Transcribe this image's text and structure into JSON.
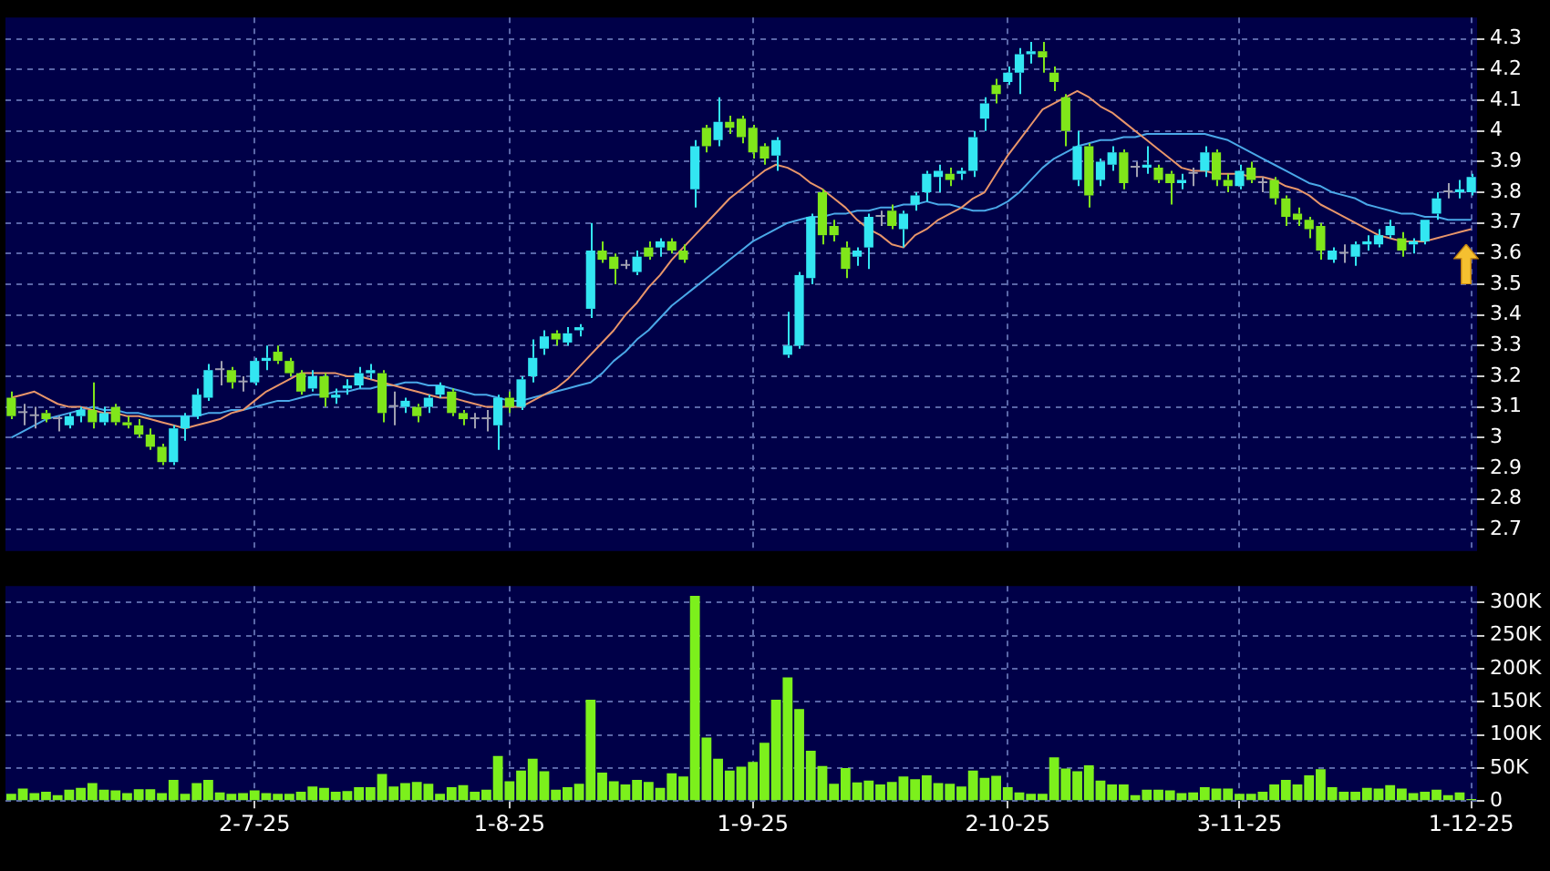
{
  "chart_data": [
    {
      "type": "candlestick",
      "tick_labels": "y",
      "grid": true,
      "marker": "none",
      "categories": [
        null,
        null,
        null,
        null,
        null,
        null,
        null,
        null,
        null,
        null,
        null,
        null,
        null,
        null,
        null,
        null,
        null,
        null,
        null,
        null,
        null,
        null,
        null,
        null,
        null,
        null,
        null,
        null,
        null,
        null,
        null,
        null,
        null,
        null,
        null,
        null,
        null,
        null,
        null,
        null,
        null,
        null,
        null,
        null,
        null,
        null,
        null,
        null,
        null,
        null,
        null,
        null,
        null,
        null,
        null,
        null,
        null,
        null,
        null,
        null,
        null,
        null,
        null,
        null,
        null,
        null,
        null,
        null,
        null,
        null,
        null,
        null,
        null,
        null,
        null,
        null,
        null,
        null,
        null,
        null,
        null,
        null,
        null,
        null,
        null,
        null,
        null,
        null,
        null,
        null,
        null,
        null,
        null,
        null,
        null,
        null,
        null,
        null,
        null,
        null,
        null,
        null,
        null,
        null,
        null,
        null,
        null,
        null,
        null,
        null,
        null,
        null,
        null,
        null,
        null,
        null,
        null,
        null,
        null,
        null,
        null,
        null,
        null,
        null,
        null,
        null,
        null
      ],
      "ohlc": [
        [
          3.13,
          3.15,
          3.06,
          3.07
        ],
        [
          3.08,
          3.11,
          3.04,
          3.08
        ],
        [
          3.07,
          3.1,
          3.03,
          3.07
        ],
        [
          3.08,
          3.09,
          3.05,
          3.06
        ],
        [
          3.06,
          3.07,
          3.02,
          3.06
        ],
        [
          3.04,
          3.08,
          3.03,
          3.07
        ],
        [
          3.07,
          3.1,
          3.05,
          3.09
        ],
        [
          3.09,
          3.18,
          3.03,
          3.05
        ],
        [
          3.05,
          3.1,
          3.04,
          3.08
        ],
        [
          3.1,
          3.11,
          3.04,
          3.05
        ],
        [
          3.05,
          3.07,
          3.03,
          3.04
        ],
        [
          3.04,
          3.06,
          3.0,
          3.01
        ],
        [
          3.01,
          3.03,
          2.96,
          2.97
        ],
        [
          2.97,
          2.98,
          2.91,
          2.92
        ],
        [
          2.92,
          3.04,
          2.91,
          3.03
        ],
        [
          3.03,
          3.08,
          2.99,
          3.07
        ],
        [
          3.07,
          3.16,
          3.06,
          3.14
        ],
        [
          3.13,
          3.24,
          3.12,
          3.22
        ],
        [
          3.22,
          3.25,
          3.17,
          3.22
        ],
        [
          3.22,
          3.23,
          3.16,
          3.18
        ],
        [
          3.18,
          3.2,
          3.15,
          3.18
        ],
        [
          3.18,
          3.26,
          3.17,
          3.25
        ],
        [
          3.25,
          3.3,
          3.22,
          3.26
        ],
        [
          3.28,
          3.3,
          3.24,
          3.25
        ],
        [
          3.25,
          3.26,
          3.2,
          3.21
        ],
        [
          3.21,
          3.22,
          3.14,
          3.15
        ],
        [
          3.16,
          3.22,
          3.15,
          3.2
        ],
        [
          3.2,
          3.21,
          3.1,
          3.13
        ],
        [
          3.13,
          3.16,
          3.11,
          3.14
        ],
        [
          3.16,
          3.19,
          3.14,
          3.17
        ],
        [
          3.17,
          3.23,
          3.16,
          3.21
        ],
        [
          3.21,
          3.24,
          3.19,
          3.22
        ],
        [
          3.21,
          3.22,
          3.05,
          3.08
        ],
        [
          3.1,
          3.15,
          3.04,
          3.1
        ],
        [
          3.1,
          3.13,
          3.08,
          3.12
        ],
        [
          3.1,
          3.11,
          3.05,
          3.07
        ],
        [
          3.1,
          3.14,
          3.08,
          3.13
        ],
        [
          3.14,
          3.18,
          3.13,
          3.17
        ],
        [
          3.15,
          3.16,
          3.07,
          3.08
        ],
        [
          3.08,
          3.09,
          3.04,
          3.06
        ],
        [
          3.06,
          3.08,
          3.03,
          3.06
        ],
        [
          3.06,
          3.09,
          3.02,
          3.06
        ],
        [
          3.04,
          3.14,
          2.96,
          3.13
        ],
        [
          3.13,
          3.15,
          3.08,
          3.1
        ],
        [
          3.1,
          3.2,
          3.09,
          3.19
        ],
        [
          3.2,
          3.32,
          3.18,
          3.26
        ],
        [
          3.29,
          3.35,
          3.27,
          3.33
        ],
        [
          3.34,
          3.35,
          3.3,
          3.32
        ],
        [
          3.31,
          3.36,
          3.3,
          3.34
        ],
        [
          3.35,
          3.37,
          3.33,
          3.36
        ],
        [
          3.42,
          3.7,
          3.39,
          3.61
        ],
        [
          3.61,
          3.64,
          3.57,
          3.58
        ],
        [
          3.59,
          3.6,
          3.5,
          3.55
        ],
        [
          3.56,
          3.58,
          3.55,
          3.56
        ],
        [
          3.54,
          3.61,
          3.53,
          3.59
        ],
        [
          3.62,
          3.64,
          3.58,
          3.59
        ],
        [
          3.62,
          3.65,
          3.59,
          3.64
        ],
        [
          3.64,
          3.65,
          3.6,
          3.61
        ],
        [
          3.61,
          3.63,
          3.57,
          3.58
        ],
        [
          3.81,
          3.97,
          3.75,
          3.95
        ],
        [
          4.01,
          4.02,
          3.93,
          3.95
        ],
        [
          3.97,
          4.11,
          3.95,
          4.03
        ],
        [
          4.03,
          4.05,
          3.99,
          4.01
        ],
        [
          4.04,
          4.05,
          3.96,
          3.98
        ],
        [
          4.01,
          4.02,
          3.91,
          3.93
        ],
        [
          3.95,
          3.96,
          3.89,
          3.91
        ],
        [
          3.92,
          3.98,
          3.87,
          3.97
        ],
        [
          3.27,
          3.41,
          3.26,
          3.3
        ],
        [
          3.3,
          3.54,
          3.29,
          3.53
        ],
        [
          3.52,
          3.73,
          3.5,
          3.72
        ],
        [
          3.8,
          3.81,
          3.63,
          3.66
        ],
        [
          3.69,
          3.71,
          3.64,
          3.66
        ],
        [
          3.62,
          3.64,
          3.52,
          3.55
        ],
        [
          3.59,
          3.62,
          3.56,
          3.61
        ],
        [
          3.62,
          3.73,
          3.55,
          3.72
        ],
        [
          3.72,
          3.74,
          3.69,
          3.72
        ],
        [
          3.74,
          3.76,
          3.68,
          3.69
        ],
        [
          3.68,
          3.74,
          3.62,
          3.73
        ],
        [
          3.76,
          3.8,
          3.74,
          3.79
        ],
        [
          3.8,
          3.87,
          3.77,
          3.86
        ],
        [
          3.85,
          3.89,
          3.8,
          3.87
        ],
        [
          3.86,
          3.88,
          3.82,
          3.84
        ],
        [
          3.86,
          3.88,
          3.84,
          3.87
        ],
        [
          3.87,
          4.0,
          3.85,
          3.98
        ],
        [
          4.04,
          4.11,
          4.0,
          4.09
        ],
        [
          4.15,
          4.17,
          4.09,
          4.12
        ],
        [
          4.16,
          4.21,
          4.15,
          4.19
        ],
        [
          4.19,
          4.27,
          4.12,
          4.25
        ],
        [
          4.25,
          4.29,
          4.22,
          4.26
        ],
        [
          4.26,
          4.29,
          4.19,
          4.24
        ],
        [
          4.19,
          4.21,
          4.13,
          4.16
        ],
        [
          4.11,
          4.12,
          3.95,
          4.0
        ],
        [
          3.84,
          4.0,
          3.82,
          3.95
        ],
        [
          3.95,
          3.96,
          3.75,
          3.79
        ],
        [
          3.84,
          3.91,
          3.82,
          3.9
        ],
        [
          3.89,
          3.95,
          3.87,
          3.93
        ],
        [
          3.93,
          3.94,
          3.81,
          3.83
        ],
        [
          3.88,
          3.9,
          3.85,
          3.88
        ],
        [
          3.88,
          3.95,
          3.86,
          3.89
        ],
        [
          3.88,
          3.89,
          3.83,
          3.84
        ],
        [
          3.86,
          3.87,
          3.76,
          3.83
        ],
        [
          3.83,
          3.86,
          3.81,
          3.84
        ],
        [
          3.86,
          3.88,
          3.82,
          3.86
        ],
        [
          3.87,
          3.95,
          3.85,
          3.93
        ],
        [
          3.93,
          3.94,
          3.82,
          3.84
        ],
        [
          3.84,
          3.86,
          3.8,
          3.82
        ],
        [
          3.82,
          3.89,
          3.81,
          3.87
        ],
        [
          3.88,
          3.9,
          3.83,
          3.84
        ],
        [
          3.83,
          3.85,
          3.8,
          3.83
        ],
        [
          3.84,
          3.85,
          3.76,
          3.78
        ],
        [
          3.78,
          3.79,
          3.69,
          3.72
        ],
        [
          3.73,
          3.75,
          3.69,
          3.71
        ],
        [
          3.71,
          3.72,
          3.65,
          3.68
        ],
        [
          3.69,
          3.7,
          3.58,
          3.61
        ],
        [
          3.58,
          3.62,
          3.57,
          3.61
        ],
        [
          3.6,
          3.63,
          3.57,
          3.6
        ],
        [
          3.59,
          3.64,
          3.56,
          3.63
        ],
        [
          3.63,
          3.66,
          3.61,
          3.64
        ],
        [
          3.63,
          3.68,
          3.62,
          3.66
        ],
        [
          3.66,
          3.71,
          3.65,
          3.69
        ],
        [
          3.65,
          3.67,
          3.59,
          3.61
        ],
        [
          3.63,
          3.65,
          3.6,
          3.64
        ],
        [
          3.64,
          3.71,
          3.63,
          3.71
        ],
        [
          3.73,
          3.8,
          3.71,
          3.78
        ],
        [
          3.8,
          3.83,
          3.78,
          3.8
        ],
        [
          3.8,
          3.84,
          3.78,
          3.81
        ],
        [
          3.8,
          3.86,
          3.79,
          3.85
        ]
      ],
      "colors": [
        "#80e61a",
        "#a0a0b0",
        "#a0a0b0",
        "#80e61a",
        "#a0a0b0",
        "#33e6f2",
        "#33e6f2",
        "#80e61a",
        "#33e6f2",
        "#80e61a",
        "#80e61a",
        "#80e61a",
        "#80e61a",
        "#80e61a",
        "#33e6f2",
        "#33e6f2",
        "#33e6f2",
        "#33e6f2",
        "#a0a0b0",
        "#80e61a",
        "#a0a0b0",
        "#33e6f2",
        "#33e6f2",
        "#80e61a",
        "#80e61a",
        "#80e61a",
        "#33e6f2",
        "#80e61a",
        "#33e6f2",
        "#33e6f2",
        "#33e6f2",
        "#33e6f2",
        "#80e61a",
        "#a0a0b0",
        "#33e6f2",
        "#80e61a",
        "#33e6f2",
        "#33e6f2",
        "#80e61a",
        "#80e61a",
        "#a0a0b0",
        "#a0a0b0",
        "#33e6f2",
        "#80e61a",
        "#33e6f2",
        "#33e6f2",
        "#33e6f2",
        "#80e61a",
        "#33e6f2",
        "#33e6f2",
        "#33e6f2",
        "#80e61a",
        "#80e61a",
        "#a0a0b0",
        "#33e6f2",
        "#80e61a",
        "#33e6f2",
        "#80e61a",
        "#80e61a",
        "#33e6f2",
        "#80e61a",
        "#33e6f2",
        "#80e61a",
        "#80e61a",
        "#80e61a",
        "#80e61a",
        "#33e6f2",
        "#33e6f2",
        "#33e6f2",
        "#33e6f2",
        "#80e61a",
        "#80e61a",
        "#80e61a",
        "#33e6f2",
        "#33e6f2",
        "#a0a0b0",
        "#80e61a",
        "#33e6f2",
        "#33e6f2",
        "#33e6f2",
        "#33e6f2",
        "#80e61a",
        "#33e6f2",
        "#33e6f2",
        "#33e6f2",
        "#80e61a",
        "#33e6f2",
        "#33e6f2",
        "#33e6f2",
        "#80e61a",
        "#80e61a",
        "#80e61a",
        "#33e6f2",
        "#80e61a",
        "#33e6f2",
        "#33e6f2",
        "#80e61a",
        "#a0a0b0",
        "#33e6f2",
        "#80e61a",
        "#80e61a",
        "#33e6f2",
        "#a0a0b0",
        "#33e6f2",
        "#80e61a",
        "#80e61a",
        "#33e6f2",
        "#80e61a",
        "#a0a0b0",
        "#80e61a",
        "#80e61a",
        "#80e61a",
        "#80e61a",
        "#80e61a",
        "#33e6f2",
        "#a0a0b0",
        "#33e6f2",
        "#33e6f2",
        "#33e6f2",
        "#33e6f2",
        "#80e61a",
        "#33e6f2",
        "#33e6f2",
        "#33e6f2",
        "#a0a0b0",
        "#33e6f2",
        "#33e6f2"
      ],
      "series": [
        {
          "type": "line",
          "color": "#e8956a",
          "values": [
            3.13,
            3.14,
            3.15,
            3.13,
            3.11,
            3.1,
            3.1,
            3.09,
            3.08,
            3.08,
            3.07,
            3.07,
            3.06,
            3.05,
            3.04,
            3.03,
            3.04,
            3.05,
            3.06,
            3.08,
            3.09,
            3.12,
            3.15,
            3.17,
            3.19,
            3.21,
            3.21,
            3.21,
            3.21,
            3.2,
            3.2,
            3.19,
            3.18,
            3.17,
            3.16,
            3.15,
            3.14,
            3.13,
            3.13,
            3.12,
            3.11,
            3.1,
            3.1,
            3.1,
            3.1,
            3.12,
            3.14,
            3.16,
            3.19,
            3.23,
            3.27,
            3.31,
            3.35,
            3.4,
            3.44,
            3.49,
            3.53,
            3.58,
            3.62,
            3.66,
            3.7,
            3.74,
            3.78,
            3.81,
            3.84,
            3.87,
            3.89,
            3.88,
            3.86,
            3.83,
            3.81,
            3.78,
            3.75,
            3.71,
            3.68,
            3.66,
            3.63,
            3.62,
            3.66,
            3.68,
            3.71,
            3.73,
            3.75,
            3.78,
            3.8,
            3.86,
            3.92,
            3.97,
            4.02,
            4.07,
            4.09,
            4.11,
            4.13,
            4.11,
            4.08,
            4.06,
            4.03,
            4.0,
            3.97,
            3.94,
            3.91,
            3.88,
            3.87,
            3.87,
            3.86,
            3.86,
            3.86,
            3.85,
            3.85,
            3.84,
            3.82,
            3.81,
            3.79,
            3.76,
            3.74,
            3.72,
            3.7,
            3.68,
            3.66,
            3.65,
            3.64,
            3.64,
            3.64,
            3.65,
            3.66,
            3.67,
            3.68
          ]
        },
        {
          "type": "line",
          "color": "#4aa8e8",
          "values": [
            3.0,
            3.02,
            3.04,
            3.06,
            3.07,
            3.08,
            3.09,
            3.1,
            3.09,
            3.09,
            3.08,
            3.08,
            3.07,
            3.07,
            3.07,
            3.07,
            3.07,
            3.08,
            3.08,
            3.09,
            3.09,
            3.1,
            3.11,
            3.12,
            3.12,
            3.13,
            3.14,
            3.14,
            3.15,
            3.15,
            3.16,
            3.16,
            3.17,
            3.17,
            3.18,
            3.18,
            3.17,
            3.17,
            3.16,
            3.15,
            3.14,
            3.14,
            3.13,
            3.12,
            3.12,
            3.13,
            3.14,
            3.15,
            3.16,
            3.17,
            3.18,
            3.21,
            3.25,
            3.28,
            3.32,
            3.35,
            3.39,
            3.43,
            3.46,
            3.49,
            3.52,
            3.55,
            3.58,
            3.61,
            3.64,
            3.66,
            3.68,
            3.7,
            3.71,
            3.72,
            3.72,
            3.73,
            3.73,
            3.74,
            3.74,
            3.75,
            3.75,
            3.76,
            3.76,
            3.77,
            3.76,
            3.76,
            3.75,
            3.74,
            3.74,
            3.75,
            3.77,
            3.8,
            3.84,
            3.88,
            3.91,
            3.93,
            3.95,
            3.96,
            3.97,
            3.97,
            3.98,
            3.98,
            3.99,
            3.99,
            3.99,
            3.99,
            3.99,
            3.99,
            3.98,
            3.97,
            3.95,
            3.93,
            3.91,
            3.89,
            3.87,
            3.85,
            3.83,
            3.82,
            3.8,
            3.79,
            3.78,
            3.76,
            3.75,
            3.74,
            3.73,
            3.73,
            3.72,
            3.72,
            3.71,
            3.71,
            3.71
          ]
        }
      ],
      "ylim": [
        2.63,
        4.37
      ],
      "yticks": [
        2.7,
        2.8,
        2.9,
        3,
        3.1,
        3.2,
        3.3,
        3.4,
        3.5,
        3.6,
        3.7,
        3.8,
        3.9,
        4,
        4.1,
        4.2,
        4.3
      ]
    },
    {
      "type": "bar",
      "grid": true,
      "color": "#7cf01c",
      "categories": [
        null,
        null,
        null,
        null,
        null,
        null,
        null,
        null,
        null,
        null,
        null,
        null,
        null,
        null,
        null,
        null,
        null,
        null,
        null,
        null,
        null,
        "2-7-25",
        null,
        null,
        null,
        null,
        null,
        null,
        null,
        null,
        null,
        null,
        null,
        null,
        null,
        null,
        null,
        null,
        null,
        null,
        null,
        null,
        null,
        "1-8-25",
        null,
        null,
        null,
        null,
        null,
        null,
        null,
        null,
        null,
        null,
        null,
        null,
        null,
        null,
        null,
        null,
        null,
        null,
        null,
        null,
        "1-9-25",
        null,
        null,
        null,
        null,
        null,
        null,
        null,
        null,
        null,
        null,
        null,
        null,
        null,
        null,
        null,
        null,
        null,
        null,
        null,
        null,
        null,
        "2-10-25",
        null,
        null,
        null,
        null,
        null,
        null,
        null,
        null,
        null,
        null,
        null,
        null,
        null,
        null,
        null,
        null,
        null,
        null,
        null,
        "3-11-25",
        null,
        null,
        null,
        null,
        null,
        null,
        null,
        null,
        null,
        null,
        null,
        null,
        null,
        null,
        null,
        null,
        null,
        null,
        null,
        "1-12-25"
      ],
      "values": [
        11000,
        19000,
        12000,
        14000,
        9000,
        17000,
        20000,
        27000,
        17000,
        16000,
        12000,
        18000,
        18000,
        12000,
        32000,
        11000,
        27000,
        32000,
        13000,
        11000,
        12000,
        16000,
        12000,
        11000,
        11000,
        14000,
        22000,
        20000,
        14000,
        15000,
        21000,
        21000,
        41000,
        22000,
        27000,
        29000,
        26000,
        11000,
        21000,
        24000,
        14000,
        17000,
        68000,
        30000,
        46000,
        64000,
        45000,
        17000,
        21000,
        26000,
        153000,
        43000,
        30000,
        25000,
        32000,
        29000,
        20000,
        42000,
        37000,
        310000,
        96000,
        64000,
        46000,
        52000,
        59000,
        88000,
        153000,
        187000,
        139000,
        76000,
        53000,
        26000,
        50000,
        28000,
        31000,
        25000,
        29000,
        37000,
        33000,
        39000,
        27000,
        26000,
        22000,
        46000,
        35000,
        38000,
        21000,
        13000,
        11000,
        11000,
        66000,
        49000,
        45000,
        54000,
        31000,
        25000,
        25000,
        9000,
        17000,
        17000,
        16000,
        12000,
        13000,
        21000,
        19000,
        19000,
        11000,
        11000,
        14000,
        25000,
        32000,
        25000,
        39000,
        48000,
        21000,
        14000,
        14000,
        20000,
        19000,
        24000,
        19000,
        12000,
        14000,
        17000,
        9000,
        13000,
        3000
      ],
      "ylim": [
        0,
        325000
      ],
      "yticks": [
        0,
        {
          "value": 50000,
          "label": "50K"
        },
        {
          "value": 100000,
          "label": "100K"
        },
        {
          "value": 150000,
          "label": "150K"
        },
        {
          "value": 200000,
          "label": "200K"
        },
        {
          "value": 250000,
          "label": "250K"
        },
        {
          "value": 300000,
          "label": "300K"
        }
      ]
    }
  ]
}
